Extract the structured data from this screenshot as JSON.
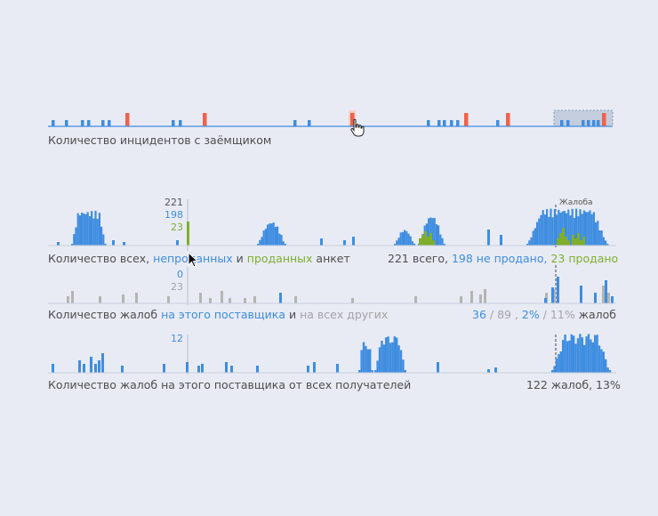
{
  "colors": {
    "background": "#e8ebf4",
    "blue": "#3f8de0",
    "red": "#f2614a",
    "green": "#7fae2d",
    "grey": "#b4b4b4",
    "baseline": "#3f8de0",
    "panel_line": "#c9cfdc"
  },
  "incidents": {
    "caption": "Количество инцидентов с заёмщиком"
  },
  "sales": {
    "cursor_values": {
      "total": "221",
      "not_sold": "198",
      "sold": "23"
    },
    "marker_label": "Жалоба",
    "caption": {
      "prefix": "Количество всех, ",
      "not_sold": "непроданных",
      "mid": " и ",
      "sold": "проданных",
      "suffix": " анкет"
    },
    "stats": {
      "total": "221 всего,",
      "not_sold": "198 не продано,",
      "sold": "23 продано"
    }
  },
  "complaints_vendor": {
    "cursor_values": {
      "this_vendor": "0",
      "others": "23"
    },
    "caption": {
      "prefix": "Количество жалоб ",
      "this": "на этого поставщика",
      "mid": " и ",
      "others": "на всех других"
    },
    "stats": {
      "count_this": "36",
      "count_sep": " / 89 ,",
      "pct_this": "2%",
      "pct_sep": " / 11%",
      "unit": "жалоб"
    }
  },
  "complaints_recipients": {
    "cursor_value": "12",
    "caption": "Количество жалоб на этого поставщика от всех получателей",
    "stats": "122 жалоб, 13%"
  },
  "cursor_icons": {
    "hand": "hand-pointer-icon",
    "arrow": "arrow-pointer-icon"
  }
}
